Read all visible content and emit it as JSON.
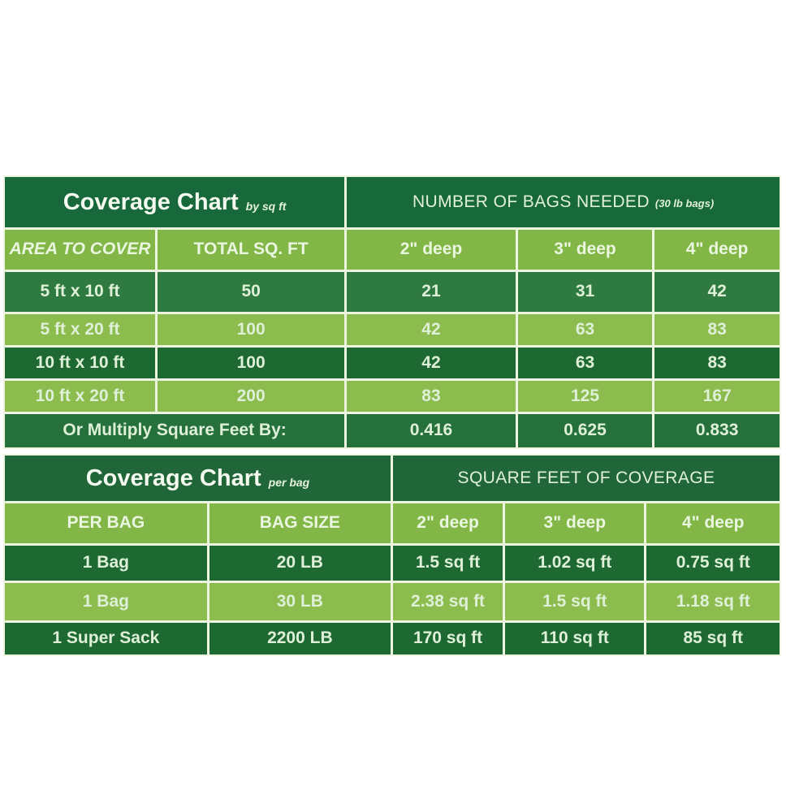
{
  "colors": {
    "page_bg": "#FFFFFF",
    "table1_header_green": "#17683A",
    "table2_header_green": "#206639",
    "row_dark_green": "#2E7A40",
    "row_dark_green_alt": "#1E6932",
    "row_light_green": "#8CBC4D",
    "column_header_green": "#82B747",
    "footer_row_green": "#26703C",
    "grid_line": "#EDF4DF",
    "text_pale_green": "#DFF0D8"
  },
  "chart_data": [
    {
      "type": "table",
      "name": "coverage_chart_by_sq_ft",
      "title": "Coverage Chart",
      "title_note": "by sq ft",
      "group_header": "NUMBER OF BAGS NEEDED",
      "group_header_note": "(30 lb bags)",
      "columns": [
        "AREA TO COVER",
        "TOTAL SQ. FT",
        "2\" deep",
        "3\" deep",
        "4\" deep"
      ],
      "rows": [
        [
          "5 ft x 10 ft",
          "50",
          "21",
          "31",
          "42"
        ],
        [
          "5 ft x 20 ft",
          "100",
          "42",
          "63",
          "83"
        ],
        [
          "10 ft x 10 ft",
          "100",
          "42",
          "63",
          "83"
        ],
        [
          "10 ft x 20 ft",
          "200",
          "83",
          "125",
          "167"
        ]
      ],
      "footer_label": "Or Multiply Square Feet By:",
      "footer_values": [
        "0.416",
        "0.625",
        "0.833"
      ]
    },
    {
      "type": "table",
      "name": "coverage_chart_per_bag",
      "title": "Coverage Chart",
      "title_note": "per bag",
      "group_header": "SQUARE FEET OF COVERAGE",
      "columns": [
        "PER BAG",
        "BAG SIZE",
        "2\" deep",
        "3\" deep",
        "4\" deep"
      ],
      "rows": [
        [
          "1 Bag",
          "20 LB",
          "1.5 sq ft",
          "1.02 sq ft",
          "0.75 sq ft"
        ],
        [
          "1 Bag",
          "30 LB",
          "2.38 sq ft",
          "1.5 sq ft",
          "1.18 sq ft"
        ],
        [
          "1 Super Sack",
          "2200 LB",
          "170 sq ft",
          "110 sq ft",
          "85 sq ft"
        ]
      ]
    }
  ]
}
